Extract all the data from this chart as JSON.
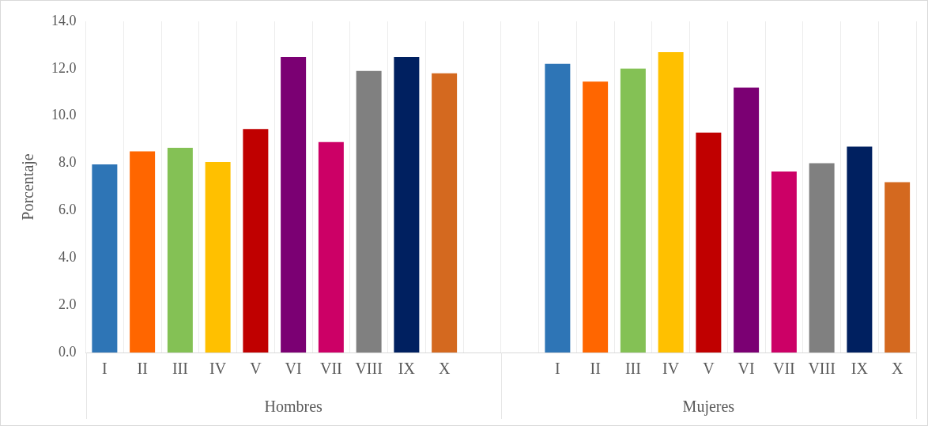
{
  "chart_data": {
    "type": "bar",
    "ylabel": "Porcentaje",
    "categories": [
      "I",
      "II",
      "III",
      "IV",
      "V",
      "VI",
      "VII",
      "VIII",
      "IX",
      "X",
      null,
      null,
      "I",
      "II",
      "III",
      "IV",
      "V",
      "VI",
      "VII",
      "VIII",
      "IX",
      "X"
    ],
    "values": [
      7.95,
      8.5,
      8.65,
      8.05,
      9.45,
      12.5,
      8.9,
      11.9,
      12.5,
      11.8,
      null,
      null,
      12.2,
      11.45,
      12.0,
      12.7,
      9.3,
      11.2,
      7.65,
      8.0,
      8.7,
      7.2
    ],
    "colors": [
      "#2e75b6",
      "#ff6600",
      "#84c155",
      "#ffc000",
      "#c00000",
      "#7b0073",
      "#cc0066",
      "#808080",
      "#002060",
      "#d4691f",
      null,
      null,
      "#2e75b6",
      "#ff6600",
      "#84c155",
      "#ffc000",
      "#c00000",
      "#7b0073",
      "#cc0066",
      "#808080",
      "#002060",
      "#d4691f"
    ],
    "ylim": [
      0,
      14
    ],
    "yticks": [
      {
        "value": 0,
        "label": "0.0"
      },
      {
        "value": 2,
        "label": "2.0"
      },
      {
        "value": 4,
        "label": "4.0"
      },
      {
        "value": 6,
        "label": "6.0"
      },
      {
        "value": 8,
        "label": "8.0"
      },
      {
        "value": 10,
        "label": "10.0"
      },
      {
        "value": 12,
        "label": "12.0"
      },
      {
        "value": 14,
        "label": "14.0"
      }
    ],
    "grid": "x",
    "legend": false,
    "annotations": [
      "Hombres",
      "Mujeres"
    ]
  }
}
